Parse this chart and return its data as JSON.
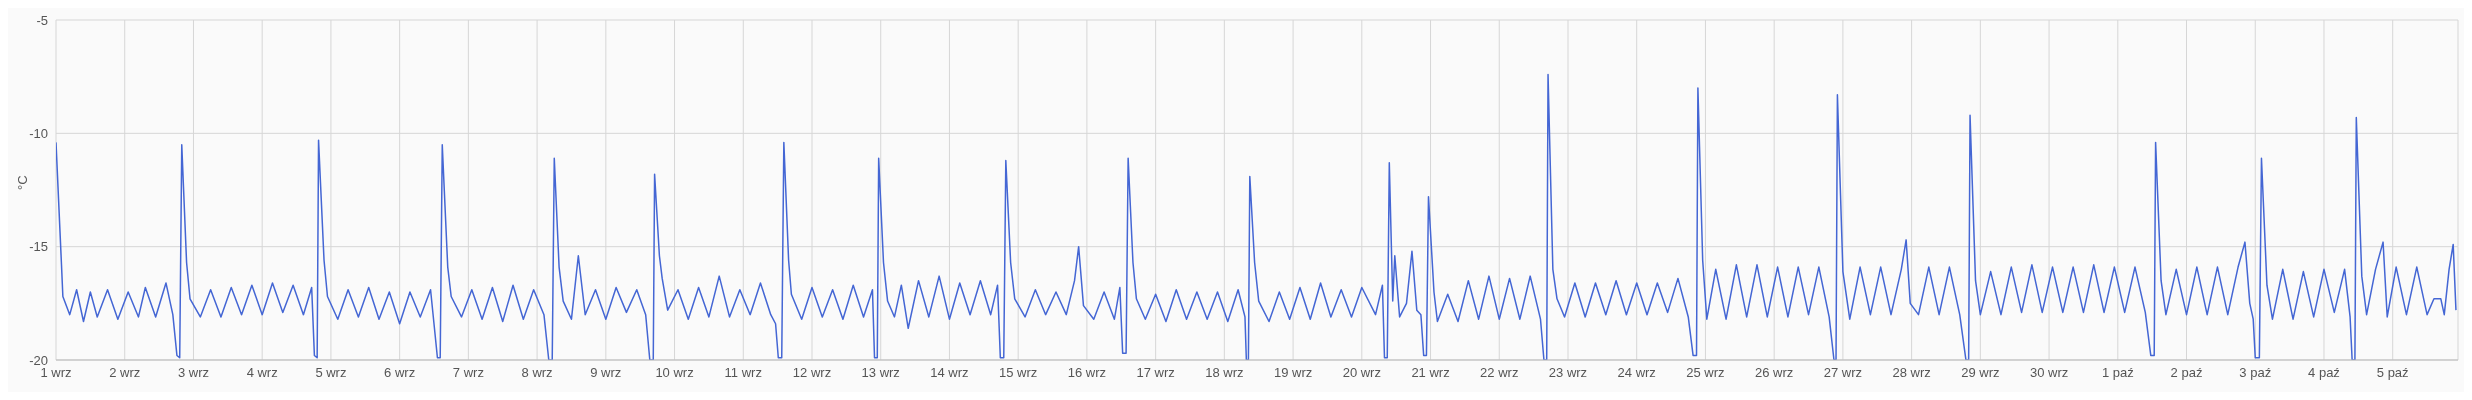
{
  "chart_data": {
    "type": "line",
    "ylabel": "°C",
    "color": "#4466d4",
    "grid": true,
    "marker": "none",
    "line_style": "solid",
    "legend": false,
    "xlim": [
      "--09-01",
      "--10-05T22:48"
    ],
    "ylim": [
      -20,
      -5
    ],
    "yticks": [
      -20,
      -15,
      -10,
      -5
    ],
    "xticks": [
      {
        "value": "--09-01",
        "label": "1 wrz"
      },
      {
        "value": "--09-02",
        "label": "2 wrz"
      },
      {
        "value": "--09-03",
        "label": "3 wrz"
      },
      {
        "value": "--09-04",
        "label": "4 wrz"
      },
      {
        "value": "--09-05",
        "label": "5 wrz"
      },
      {
        "value": "--09-06",
        "label": "6 wrz"
      },
      {
        "value": "--09-07",
        "label": "7 wrz"
      },
      {
        "value": "--09-08",
        "label": "8 wrz"
      },
      {
        "value": "--09-09",
        "label": "9 wrz"
      },
      {
        "value": "--09-10",
        "label": "10 wrz"
      },
      {
        "value": "--09-11",
        "label": "11 wrz"
      },
      {
        "value": "--09-12",
        "label": "12 wrz"
      },
      {
        "value": "--09-13",
        "label": "13 wrz"
      },
      {
        "value": "--09-14",
        "label": "14 wrz"
      },
      {
        "value": "--09-15",
        "label": "15 wrz"
      },
      {
        "value": "--09-16",
        "label": "16 wrz"
      },
      {
        "value": "--09-17",
        "label": "17 wrz"
      },
      {
        "value": "--09-18",
        "label": "18 wrz"
      },
      {
        "value": "--09-19",
        "label": "19 wrz"
      },
      {
        "value": "--09-20",
        "label": "20 wrz"
      },
      {
        "value": "--09-21",
        "label": "21 wrz"
      },
      {
        "value": "--09-22",
        "label": "22 wrz"
      },
      {
        "value": "--09-23",
        "label": "23 wrz"
      },
      {
        "value": "--09-24",
        "label": "24 wrz"
      },
      {
        "value": "--09-25",
        "label": "25 wrz"
      },
      {
        "value": "--09-26",
        "label": "26 wrz"
      },
      {
        "value": "--09-27",
        "label": "27 wrz"
      },
      {
        "value": "--09-28",
        "label": "28 wrz"
      },
      {
        "value": "--09-29",
        "label": "29 wrz"
      },
      {
        "value": "--09-30",
        "label": "30 wrz"
      },
      {
        "value": "--10-01",
        "label": "1 paź"
      },
      {
        "value": "--10-02",
        "label": "2 paź"
      },
      {
        "value": "--10-03",
        "label": "3 paź"
      },
      {
        "value": "--10-04",
        "label": "4 paź"
      },
      {
        "value": "--10-05",
        "label": "5 paź"
      }
    ],
    "x": [
      "--09-01T00:00",
      "--09-01T01:55",
      "--09-01T02:24",
      "--09-01T04:48",
      "--09-01T07:12",
      "--09-01T09:36",
      "--09-01T12:00",
      "--09-01T14:24",
      "--09-01T18:00",
      "--09-01T21:36",
      "--09-02T01:12",
      "--09-02T04:48",
      "--09-02T07:12",
      "--09-02T10:48",
      "--09-02T14:24",
      "--09-02T16:48",
      "--09-02T18:14",
      "--09-02T19:12",
      "--09-02T19:55",
      "--09-02T21:36",
      "--09-02T22:48",
      "--09-03T02:24",
      "--09-03T06:00",
      "--09-03T09:36",
      "--09-03T13:12",
      "--09-03T16:48",
      "--09-03T20:24",
      "--09-04T00:00",
      "--09-04T03:36",
      "--09-04T07:12",
      "--09-04T10:48",
      "--09-04T14:24",
      "--09-04T17:17",
      "--09-04T18:14",
      "--09-04T19:12",
      "--09-04T19:41",
      "--09-04T21:36",
      "--09-04T22:48",
      "--09-05T02:24",
      "--09-05T06:00",
      "--09-05T09:36",
      "--09-05T13:12",
      "--09-05T16:48",
      "--09-05T20:24",
      "--09-06T00:00",
      "--09-06T03:36",
      "--09-06T07:12",
      "--09-06T10:48",
      "--09-06T13:12",
      "--09-06T14:10",
      "--09-06T14:53",
      "--09-06T16:48",
      "--09-06T18:00",
      "--09-06T21:36",
      "--09-07T01:12",
      "--09-07T04:48",
      "--09-07T08:24",
      "--09-07T12:00",
      "--09-07T15:36",
      "--09-07T19:12",
      "--09-07T22:48",
      "--09-08T02:24",
      "--09-08T04:05",
      "--09-08T05:17",
      "--09-08T06:00",
      "--09-08T07:41",
      "--09-08T09:07",
      "--09-08T12:00",
      "--09-08T14:24",
      "--09-08T16:48",
      "--09-08T20:24",
      "--09-09T00:00",
      "--09-09T03:36",
      "--09-09T07:12",
      "--09-09T10:48",
      "--09-09T13:55",
      "--09-09T15:22",
      "--09-09T16:34",
      "--09-09T17:02",
      "--09-09T18:43",
      "--09-09T19:41",
      "--09-09T21:36",
      "--09-10T01:12",
      "--09-10T04:48",
      "--09-10T08:24",
      "--09-10T12:00",
      "--09-10T15:36",
      "--09-10T19:12",
      "--09-10T22:48",
      "--09-11T02:24",
      "--09-11T06:00",
      "--09-11T09:36",
      "--09-11T11:17",
      "--09-11T12:14",
      "--09-11T13:26",
      "--09-11T14:10",
      "--09-11T15:50",
      "--09-11T16:48",
      "--09-11T20:24",
      "--09-12T00:00",
      "--09-12T03:36",
      "--09-12T07:12",
      "--09-12T10:48",
      "--09-12T14:24",
      "--09-12T18:00",
      "--09-12T21:07",
      "--09-12T21:50",
      "--09-12T22:48",
      "--09-12T23:17",
      "--09-13T00:58",
      "--09-13T02:24",
      "--09-13T04:48",
      "--09-13T07:12",
      "--09-13T09:36",
      "--09-13T13:12",
      "--09-13T16:48",
      "--09-13T20:24",
      "--09-14T00:00",
      "--09-14T03:36",
      "--09-14T07:12",
      "--09-14T10:48",
      "--09-14T14:24",
      "--09-14T16:48",
      "--09-14T17:46",
      "--09-14T18:58",
      "--09-14T19:41",
      "--09-14T21:22",
      "--09-14T22:48",
      "--09-15T02:24",
      "--09-15T06:00",
      "--09-15T09:36",
      "--09-15T13:12",
      "--09-15T16:48",
      "--09-15T19:41",
      "--09-15T21:07",
      "--09-15T22:48",
      "--09-16T02:24",
      "--09-16T06:00",
      "--09-16T09:36",
      "--09-16T11:31",
      "--09-16T12:29",
      "--09-16T13:41",
      "--09-16T14:24",
      "--09-16T16:05",
      "--09-16T17:17",
      "--09-16T20:24",
      "--09-17T00:00",
      "--09-17T03:36",
      "--09-17T07:12",
      "--09-17T10:48",
      "--09-17T14:24",
      "--09-17T18:00",
      "--09-17T21:36",
      "--09-18T01:12",
      "--09-18T04:48",
      "--09-18T07:12",
      "--09-18T07:41",
      "--09-18T08:24",
      "--09-18T08:53",
      "--09-18T10:34",
      "--09-18T12:00",
      "--09-18T15:36",
      "--09-18T19:12",
      "--09-18T22:48",
      "--09-19T02:24",
      "--09-19T06:00",
      "--09-19T09:36",
      "--09-19T13:12",
      "--09-19T16:48",
      "--09-19T20:24",
      "--09-20T00:00",
      "--09-20T04:48",
      "--09-20T07:12",
      "--09-20T07:55",
      "--09-20T08:53",
      "--09-20T09:36",
      "--09-20T10:48",
      "--09-20T11:31",
      "--09-20T13:12",
      "--09-20T15:36",
      "--09-20T17:31",
      "--09-20T19:12",
      "--09-20T20:38",
      "--09-20T21:36",
      "--09-20T22:34",
      "--09-20T23:17",
      "--09-21T01:12",
      "--09-21T02:24",
      "--09-21T06:00",
      "--09-21T09:36",
      "--09-21T13:12",
      "--09-21T16:48",
      "--09-21T20:24",
      "--09-22T00:00",
      "--09-22T03:36",
      "--09-22T07:12",
      "--09-22T10:48",
      "--09-22T14:24",
      "--09-22T15:36",
      "--09-22T16:34",
      "--09-22T17:02",
      "--09-22T18:43",
      "--09-22T20:10",
      "--09-22T22:48",
      "--09-23T02:24",
      "--09-23T06:00",
      "--09-23T09:36",
      "--09-23T13:12",
      "--09-23T16:48",
      "--09-23T20:24",
      "--09-24T00:00",
      "--09-24T03:36",
      "--09-24T07:12",
      "--09-24T10:48",
      "--09-24T14:24",
      "--09-24T18:00",
      "--09-24T19:41",
      "--09-24T20:53",
      "--09-24T21:22",
      "--09-24T23:02",
      "--09-25T00:29",
      "--09-25T03:36",
      "--09-25T07:12",
      "--09-25T10:48",
      "--09-25T14:24",
      "--09-25T18:00",
      "--09-25T21:36",
      "--09-26T01:12",
      "--09-26T04:48",
      "--09-26T08:24",
      "--09-26T12:00",
      "--09-26T15:36",
      "--09-26T19:12",
      "--09-26T20:53",
      "--09-26T21:36",
      "--09-26T22:05",
      "--09-27T00:00",
      "--09-27T02:24",
      "--09-27T06:00",
      "--09-27T09:36",
      "--09-27T13:12",
      "--09-27T16:48",
      "--09-27T20:24",
      "--09-27T22:05",
      "--09-27T23:31",
      "--09-28T02:24",
      "--09-28T06:00",
      "--09-28T09:36",
      "--09-28T13:12",
      "--09-28T16:48",
      "--09-28T18:58",
      "--09-28T19:55",
      "--09-28T20:24",
      "--09-28T22:19",
      "--09-29T00:00",
      "--09-29T03:36",
      "--09-29T07:12",
      "--09-29T10:48",
      "--09-29T14:24",
      "--09-29T18:00",
      "--09-29T21:36",
      "--09-30T01:12",
      "--09-30T04:48",
      "--09-30T08:24",
      "--09-30T12:00",
      "--09-30T15:36",
      "--09-30T19:12",
      "--09-30T22:48",
      "--10-01T02:24",
      "--10-01T06:00",
      "--10-01T09:36",
      "--10-01T11:31",
      "--10-01T12:43",
      "--10-01T13:12",
      "--10-01T15:07",
      "--10-01T16:48",
      "--10-01T20:24",
      "--10-02T00:00",
      "--10-02T03:36",
      "--10-02T07:12",
      "--10-02T10:48",
      "--10-02T14:24",
      "--10-02T18:00",
      "--10-02T20:24",
      "--10-02T22:05",
      "--10-02T23:17",
      "--10-03T00:00",
      "--10-03T01:26",
      "--10-03T02:10",
      "--10-03T04:05",
      "--10-03T06:00",
      "--10-03T09:36",
      "--10-03T13:12",
      "--10-03T16:48",
      "--10-03T20:24",
      "--10-04T00:00",
      "--10-04T03:36",
      "--10-04T07:12",
      "--10-04T09:07",
      "--10-04T09:50",
      "--10-04T10:48",
      "--10-04T11:17",
      "--10-04T13:12",
      "--10-04T14:53",
      "--10-04T18:00",
      "--10-04T20:38",
      "--10-04T22:05",
      "--10-05T01:12",
      "--10-05T04:48",
      "--10-05T08:24",
      "--10-05T12:00",
      "--10-05T14:24",
      "--10-05T16:48",
      "--10-05T18:00",
      "--10-05T19:41",
      "--10-05T21:07",
      "--10-05T22:05"
    ],
    "values": [
      -10.4,
      -15.8,
      -17.2,
      -18.0,
      -16.9,
      -18.3,
      -17.0,
      -18.1,
      -16.9,
      -18.2,
      -17.0,
      -18.1,
      -16.8,
      -18.1,
      -16.6,
      -18.0,
      -19.8,
      -19.9,
      -10.5,
      -15.7,
      -17.3,
      -18.1,
      -16.9,
      -18.1,
      -16.8,
      -18.0,
      -16.7,
      -18.0,
      -16.6,
      -17.9,
      -16.7,
      -18.0,
      -16.8,
      -19.8,
      -19.9,
      -10.3,
      -15.6,
      -17.2,
      -18.2,
      -16.9,
      -18.1,
      -16.8,
      -18.2,
      -17.0,
      -18.4,
      -17.0,
      -18.1,
      -16.9,
      -19.9,
      -19.9,
      -10.5,
      -15.9,
      -17.2,
      -18.1,
      -16.9,
      -18.2,
      -16.8,
      -18.3,
      -16.7,
      -18.2,
      -16.9,
      -18.0,
      -20,
      -20,
      -11.1,
      -15.9,
      -17.4,
      -18.2,
      -15.4,
      -18.0,
      -16.9,
      -18.2,
      -16.8,
      -17.9,
      -16.9,
      -18.0,
      -20,
      -20,
      -11.8,
      -15.4,
      -16.4,
      -17.8,
      -16.9,
      -18.2,
      -16.8,
      -18.1,
      -16.3,
      -18.1,
      -16.9,
      -18.0,
      -16.6,
      -18.0,
      -18.4,
      -19.9,
      -19.9,
      -10.4,
      -15.6,
      -17.1,
      -18.2,
      -16.8,
      -18.1,
      -16.9,
      -18.2,
      -16.7,
      -18.1,
      -16.9,
      -19.9,
      -19.9,
      -11.1,
      -15.7,
      -17.4,
      -18.1,
      -16.7,
      -18.6,
      -16.5,
      -18.1,
      -16.3,
      -18.2,
      -16.6,
      -18.0,
      -16.5,
      -18.0,
      -16.7,
      -19.9,
      -19.9,
      -11.2,
      -15.7,
      -17.3,
      -18.1,
      -16.9,
      -18.0,
      -17.0,
      -18.0,
      -16.5,
      -15.0,
      -17.6,
      -18.2,
      -17.0,
      -18.2,
      -16.8,
      -19.7,
      -19.7,
      -11.1,
      -15.7,
      -17.3,
      -18.2,
      -17.1,
      -18.3,
      -16.9,
      -18.2,
      -17.0,
      -18.2,
      -17.0,
      -18.3,
      -16.9,
      -18.1,
      -20,
      -20,
      -11.9,
      -15.7,
      -17.4,
      -18.3,
      -17.0,
      -18.2,
      -16.8,
      -18.2,
      -16.6,
      -18.1,
      -16.9,
      -18.1,
      -16.8,
      -18.0,
      -16.7,
      -19.9,
      -19.9,
      -11.3,
      -17.4,
      -15.4,
      -18.1,
      -17.5,
      -15.2,
      -17.8,
      -18.0,
      -19.8,
      -19.8,
      -12.8,
      -17.0,
      -18.3,
      -17.1,
      -18.3,
      -16.5,
      -18.2,
      -16.3,
      -18.2,
      -16.4,
      -18.2,
      -16.3,
      -18.2,
      -20,
      -20,
      -7.4,
      -16.0,
      -17.3,
      -18.1,
      -16.6,
      -18.1,
      -16.6,
      -18.0,
      -16.5,
      -18.0,
      -16.6,
      -18.0,
      -16.6,
      -17.9,
      -16.4,
      -18.1,
      -19.8,
      -19.8,
      -8.0,
      -15.6,
      -18.2,
      -16.0,
      -18.2,
      -15.8,
      -18.1,
      -15.8,
      -18.1,
      -15.9,
      -18.1,
      -15.9,
      -18.0,
      -15.9,
      -18.1,
      -20,
      -20,
      -8.3,
      -16.1,
      -18.2,
      -15.9,
      -18.0,
      -15.9,
      -18.0,
      -16.0,
      -14.7,
      -17.5,
      -18.0,
      -15.9,
      -18.0,
      -15.9,
      -18.0,
      -20,
      -20,
      -9.2,
      -16.5,
      -18.0,
      -16.1,
      -18.0,
      -15.9,
      -17.9,
      -15.8,
      -17.9,
      -15.9,
      -17.9,
      -15.9,
      -17.9,
      -15.8,
      -17.9,
      -15.9,
      -17.9,
      -15.9,
      -17.9,
      -19.8,
      -19.8,
      -10.4,
      -16.5,
      -18.0,
      -16.0,
      -18.0,
      -15.9,
      -18.0,
      -15.9,
      -18.0,
      -15.9,
      -14.8,
      -17.5,
      -18.2,
      -19.9,
      -19.9,
      -11.1,
      -16.7,
      -18.2,
      -16.0,
      -18.2,
      -16.1,
      -18.1,
      -16.0,
      -17.9,
      -16.0,
      -18.1,
      -20,
      -20,
      -9.3,
      -16.3,
      -18.0,
      -16.0,
      -14.8,
      -18.1,
      -15.9,
      -18.0,
      -15.9,
      -18.0,
      -17.3,
      -17.3,
      -18.0,
      -16.0,
      -14.9,
      -17.8
    ]
  }
}
